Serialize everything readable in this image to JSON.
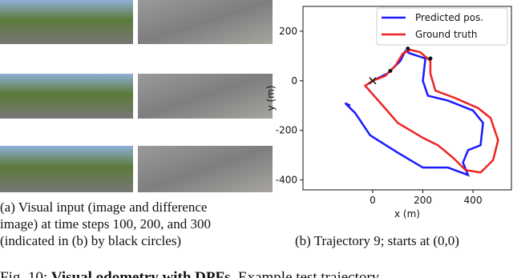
{
  "panel_a": {
    "caption_lines": [
      "(a) Visual input (image and difference",
      "image) at time steps 100, 200, and 300",
      "(indicated in (b) by black circles)"
    ]
  },
  "panel_b": {
    "caption": "(b) Trajectory 9; starts at (0,0)"
  },
  "figure_caption": {
    "label": "Fig. 10:",
    "bold": "Visual odometry with DPFs",
    "rest": ". Example test trajectory"
  },
  "chart_data": {
    "type": "line",
    "xlabel": "x (m)",
    "ylabel": "y (m)",
    "xlim": [
      -278,
      553
    ],
    "ylim": [
      -440,
      300
    ],
    "xticks": [
      0,
      200,
      400
    ],
    "yticks": [
      -400,
      -200,
      0,
      200
    ],
    "grid": false,
    "legend": "upper right",
    "series": [
      {
        "name": "Predicted pos.",
        "color": "#1a1aff",
        "x": [
          0,
          60,
          110,
          130,
          150,
          210,
          200,
          220,
          300,
          400,
          440,
          430,
          380,
          360,
          380,
          300,
          200,
          100,
          -10,
          -70,
          -110,
          -90
        ],
        "y": [
          0,
          30,
          80,
          120,
          110,
          90,
          0,
          -60,
          -80,
          -120,
          -170,
          -260,
          -280,
          -330,
          -380,
          -350,
          -350,
          -290,
          -220,
          -130,
          -90,
          -100
        ]
      },
      {
        "name": "Ground truth",
        "color": "#ee2222",
        "x": [
          0,
          50,
          90,
          120,
          150,
          190,
          230,
          230,
          250,
          330,
          420,
          470,
          500,
          480,
          430,
          370,
          320,
          260,
          200,
          150,
          100,
          40,
          -30,
          0
        ],
        "y": [
          0,
          20,
          60,
          110,
          125,
          115,
          80,
          30,
          -40,
          -70,
          -110,
          -150,
          -240,
          -320,
          -370,
          -360,
          -310,
          -260,
          -230,
          -200,
          -170,
          -100,
          -20,
          0
        ]
      }
    ],
    "markers": {
      "x": [
        70,
        140,
        230
      ],
      "y": [
        40,
        130,
        90
      ]
    },
    "start": {
      "x": 0,
      "y": 0
    }
  }
}
